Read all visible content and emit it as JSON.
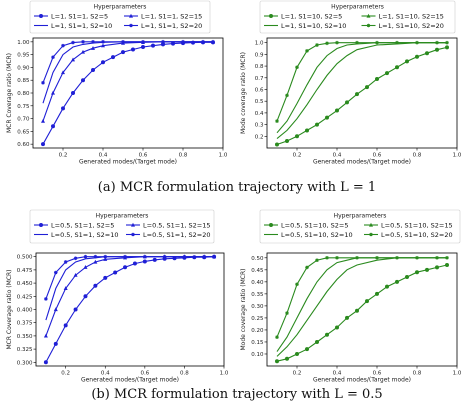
{
  "captions": {
    "a": "(a) MCR formulation trajectory with L = 1",
    "b": "(b) MCR formulation trajectory with L = 0.5"
  },
  "legend_title": "Hyperparameters",
  "chart_data": [
    {
      "type": "line",
      "ylabel": "MCR Coverage ratio (MCR)",
      "xlabel": "Generated modes/(Target mode)",
      "xlim": [
        0.05,
        1.0
      ],
      "ylim": [
        0.585,
        1.015
      ],
      "xticks": [
        "0.2",
        "0.4",
        "0.6",
        "0.8",
        "1.0"
      ],
      "yticks": [
        "0.60",
        "0.65",
        "0.70",
        "0.75",
        "0.80",
        "0.85",
        "0.90",
        "0.95",
        "1.00"
      ],
      "color": "#1f1fd6",
      "legend": [
        "L=1, S1=1, S2=5",
        "L=1, S1=1, S2=15",
        "L=1, S1=1, S2=10",
        "L=1, S1=1, S2=20"
      ],
      "series": [
        {
          "name": "L=1, S1=1, S2=5",
          "x": [
            0.1,
            0.15,
            0.2,
            0.25,
            0.3,
            0.35,
            0.4,
            0.45,
            0.5,
            0.55,
            0.6,
            0.65,
            0.7,
            0.75,
            0.8,
            0.85,
            0.9,
            0.95
          ],
          "y": [
            0.6,
            0.67,
            0.74,
            0.8,
            0.85,
            0.89,
            0.92,
            0.94,
            0.96,
            0.97,
            0.98,
            0.985,
            0.99,
            0.993,
            0.995,
            0.997,
            0.998,
            0.998
          ],
          "markers": true
        },
        {
          "name": "L=1, S1=1, S2=15",
          "x": [
            0.1,
            0.15,
            0.2,
            0.25,
            0.3,
            0.35,
            0.4,
            0.5,
            0.6,
            0.7,
            0.8,
            0.9,
            0.95
          ],
          "y": [
            0.69,
            0.8,
            0.88,
            0.93,
            0.96,
            0.975,
            0.985,
            0.995,
            0.998,
            1.0,
            1.0,
            1.0,
            1.0
          ],
          "markers": true
        },
        {
          "name": "L=1, S1=1, S2=10",
          "x": [
            0.1,
            0.15,
            0.2,
            0.25,
            0.3,
            0.35,
            0.4,
            0.5,
            0.6,
            0.7,
            0.8,
            0.9,
            0.95
          ],
          "y": [
            0.76,
            0.88,
            0.95,
            0.98,
            0.99,
            0.995,
            0.998,
            1.0,
            1.0,
            1.0,
            1.0,
            1.0,
            1.0
          ],
          "markers": false
        },
        {
          "name": "L=1, S1=1, S2=20",
          "x": [
            0.1,
            0.15,
            0.2,
            0.25,
            0.3,
            0.35,
            0.4,
            0.5,
            0.6,
            0.7,
            0.8,
            0.9,
            0.95
          ],
          "y": [
            0.84,
            0.94,
            0.985,
            0.997,
            1.0,
            1.0,
            1.0,
            1.0,
            1.0,
            1.0,
            1.0,
            1.0,
            1.0
          ],
          "markers": true
        }
      ]
    },
    {
      "type": "line",
      "ylabel": "Mode coverage ratio (MCR)",
      "xlabel": "Generated modes/(Target mode)",
      "xlim": [
        0.05,
        1.0
      ],
      "ylim": [
        0.1,
        1.04
      ],
      "xticks": [
        "0.2",
        "0.4",
        "0.6",
        "0.8",
        "1.0"
      ],
      "yticks": [
        "0.2",
        "0.3",
        "0.4",
        "0.5",
        "0.6",
        "0.7",
        "0.8",
        "0.9",
        "1.0"
      ],
      "color": "#2a8a1e",
      "legend": [
        "L=1, S1=10, S2=5",
        "L=1, S1=10, S2=15",
        "L=1, S1=10, S2=10",
        "L=1, S1=10, S2=20"
      ],
      "series": [
        {
          "name": "L=1, S1=10, S2=5",
          "x": [
            0.1,
            0.15,
            0.2,
            0.25,
            0.3,
            0.35,
            0.4,
            0.45,
            0.5,
            0.55,
            0.6,
            0.65,
            0.7,
            0.75,
            0.8,
            0.85,
            0.9,
            0.95
          ],
          "y": [
            0.13,
            0.16,
            0.2,
            0.25,
            0.3,
            0.36,
            0.42,
            0.49,
            0.56,
            0.62,
            0.69,
            0.74,
            0.79,
            0.84,
            0.88,
            0.91,
            0.94,
            0.96
          ],
          "markers": true
        },
        {
          "name": "L=1, S1=10, S2=15",
          "x": [
            0.1,
            0.15,
            0.2,
            0.25,
            0.3,
            0.35,
            0.4,
            0.45,
            0.5,
            0.6,
            0.7,
            0.8,
            0.9,
            0.95
          ],
          "y": [
            0.18,
            0.25,
            0.35,
            0.47,
            0.6,
            0.72,
            0.82,
            0.89,
            0.94,
            0.98,
            0.99,
            1.0,
            1.0,
            1.0
          ],
          "markers": false
        },
        {
          "name": "L=1, S1=10, S2=10",
          "x": [
            0.1,
            0.15,
            0.2,
            0.25,
            0.3,
            0.35,
            0.4,
            0.45,
            0.5,
            0.6,
            0.7,
            0.8,
            0.9,
            0.95
          ],
          "y": [
            0.23,
            0.33,
            0.48,
            0.64,
            0.79,
            0.89,
            0.95,
            0.98,
            0.99,
            1.0,
            1.0,
            1.0,
            1.0,
            1.0
          ],
          "markers": true
        },
        {
          "name": "L=1, S1=10, S2=20",
          "x": [
            0.1,
            0.15,
            0.2,
            0.25,
            0.3,
            0.35,
            0.4,
            0.5,
            0.6,
            0.7,
            0.8,
            0.9,
            0.95
          ],
          "y": [
            0.33,
            0.55,
            0.79,
            0.93,
            0.98,
            0.995,
            1.0,
            1.0,
            1.0,
            1.0,
            1.0,
            1.0,
            1.0
          ],
          "markers": true
        }
      ]
    },
    {
      "type": "line",
      "ylabel": "MCR Coverage ratio (MCR)",
      "xlabel": "Generated modes/(Target mode)",
      "xlim": [
        0.05,
        1.0
      ],
      "ylim": [
        0.293,
        0.507
      ],
      "xticks": [
        "0.2",
        "0.4",
        "0.6",
        "0.8",
        "1.0"
      ],
      "yticks": [
        "0.300",
        "0.325",
        "0.350",
        "0.375",
        "0.400",
        "0.425",
        "0.450",
        "0.475",
        "0.500"
      ],
      "color": "#1f1fd6",
      "legend": [
        "L=0.5, S1=1, S2=5",
        "L=0.5, S1=1, S2=15",
        "L=0.5, S1=1, S2=10",
        "L=0.5, S1=1, S2=20"
      ],
      "series": [
        {
          "name": "L=0.5, S1=1, S2=5",
          "x": [
            0.1,
            0.15,
            0.2,
            0.25,
            0.3,
            0.35,
            0.4,
            0.45,
            0.5,
            0.55,
            0.6,
            0.65,
            0.7,
            0.75,
            0.8,
            0.85,
            0.9,
            0.95
          ],
          "y": [
            0.3,
            0.335,
            0.37,
            0.4,
            0.425,
            0.445,
            0.46,
            0.47,
            0.48,
            0.487,
            0.491,
            0.494,
            0.496,
            0.497,
            0.498,
            0.499,
            0.499,
            0.5
          ],
          "markers": true
        },
        {
          "name": "L=0.5, S1=1, S2=15",
          "x": [
            0.1,
            0.15,
            0.2,
            0.25,
            0.3,
            0.35,
            0.4,
            0.5,
            0.6,
            0.7,
            0.8,
            0.9,
            0.95
          ],
          "y": [
            0.35,
            0.4,
            0.44,
            0.465,
            0.48,
            0.49,
            0.495,
            0.498,
            0.5,
            0.5,
            0.5,
            0.5,
            0.5
          ],
          "markers": true
        },
        {
          "name": "L=0.5, S1=1, S2=10",
          "x": [
            0.1,
            0.15,
            0.2,
            0.25,
            0.3,
            0.35,
            0.4,
            0.5,
            0.6,
            0.7,
            0.8,
            0.9,
            0.95
          ],
          "y": [
            0.38,
            0.44,
            0.475,
            0.49,
            0.496,
            0.498,
            0.5,
            0.5,
            0.5,
            0.5,
            0.5,
            0.5,
            0.5
          ],
          "markers": false
        },
        {
          "name": "L=0.5, S1=1, S2=20",
          "x": [
            0.1,
            0.15,
            0.2,
            0.25,
            0.3,
            0.35,
            0.4,
            0.5,
            0.6,
            0.7,
            0.8,
            0.9,
            0.95
          ],
          "y": [
            0.42,
            0.47,
            0.49,
            0.497,
            0.5,
            0.5,
            0.5,
            0.5,
            0.5,
            0.5,
            0.5,
            0.5,
            0.5
          ],
          "markers": true
        }
      ]
    },
    {
      "type": "line",
      "ylabel": "Mode coverage ratio (MCR)",
      "xlabel": "Generated modes/(Target mode)",
      "xlim": [
        0.05,
        1.0
      ],
      "ylim": [
        0.05,
        0.52
      ],
      "xticks": [
        "0.2",
        "0.4",
        "0.6",
        "0.8",
        "1.0"
      ],
      "yticks": [
        "0.10",
        "0.15",
        "0.20",
        "0.25",
        "0.30",
        "0.35",
        "0.40",
        "0.45",
        "0.50"
      ],
      "color": "#2a8a1e",
      "legend": [
        "L=0.5, S1=10, S2=5",
        "L=0.5, S1=10, S2=15",
        "L=0.5, S1=10, S2=10",
        "L=0.5, S1=10, S2=20"
      ],
      "series": [
        {
          "name": "L=0.5, S1=10, S2=5",
          "x": [
            0.1,
            0.15,
            0.2,
            0.25,
            0.3,
            0.35,
            0.4,
            0.45,
            0.5,
            0.55,
            0.6,
            0.65,
            0.7,
            0.75,
            0.8,
            0.85,
            0.9,
            0.95
          ],
          "y": [
            0.07,
            0.08,
            0.1,
            0.12,
            0.15,
            0.18,
            0.21,
            0.25,
            0.28,
            0.32,
            0.35,
            0.38,
            0.4,
            0.42,
            0.44,
            0.45,
            0.46,
            0.47
          ],
          "markers": true
        },
        {
          "name": "L=0.5, S1=10, S2=15",
          "x": [
            0.1,
            0.15,
            0.2,
            0.25,
            0.3,
            0.35,
            0.4,
            0.45,
            0.5,
            0.6,
            0.7,
            0.8,
            0.9,
            0.95
          ],
          "y": [
            0.09,
            0.13,
            0.18,
            0.24,
            0.3,
            0.36,
            0.41,
            0.45,
            0.47,
            0.49,
            0.5,
            0.5,
            0.5,
            0.5
          ],
          "markers": false
        },
        {
          "name": "L=0.5, S1=10, S2=10",
          "x": [
            0.1,
            0.15,
            0.2,
            0.25,
            0.3,
            0.35,
            0.4,
            0.45,
            0.5,
            0.6,
            0.7,
            0.8,
            0.9,
            0.95
          ],
          "y": [
            0.11,
            0.17,
            0.25,
            0.33,
            0.4,
            0.45,
            0.48,
            0.49,
            0.5,
            0.5,
            0.5,
            0.5,
            0.5,
            0.5
          ],
          "markers": true
        },
        {
          "name": "L=0.5, S1=10, S2=20",
          "x": [
            0.1,
            0.15,
            0.2,
            0.25,
            0.3,
            0.35,
            0.4,
            0.5,
            0.6,
            0.7,
            0.8,
            0.9,
            0.95
          ],
          "y": [
            0.17,
            0.27,
            0.39,
            0.46,
            0.49,
            0.5,
            0.5,
            0.5,
            0.5,
            0.5,
            0.5,
            0.5,
            0.5
          ],
          "markers": true
        }
      ]
    }
  ]
}
